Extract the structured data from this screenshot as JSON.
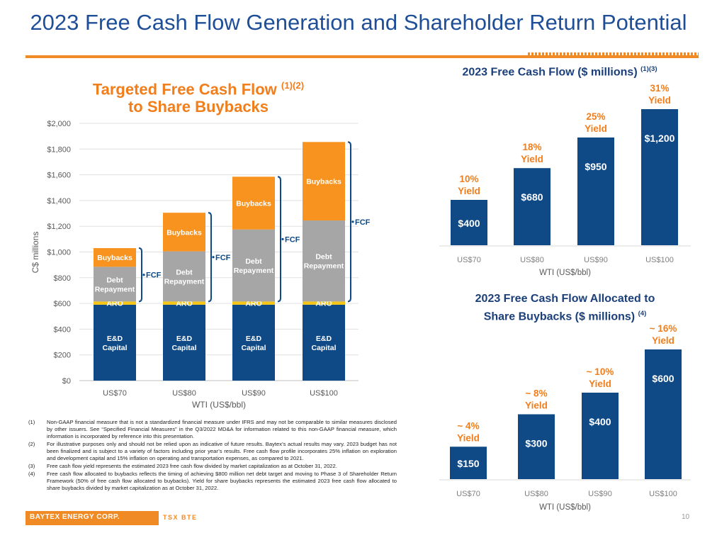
{
  "slide": {
    "title": "2023 Free Cash Flow Generation and Shareholder Return Potential",
    "page_number": "10"
  },
  "colors": {
    "navy": "#0f4a87",
    "orange": "#f7931e",
    "gray": "#a6a6a6",
    "aro": "#f5c518",
    "heading_orange": "#f07e1c",
    "heading_blue": "#1a3f7a"
  },
  "footer": {
    "company": "BAYTEX ENERGY CORP.",
    "ticker": "TSX BTE"
  },
  "footnotes": [
    {
      "num": "(1)",
      "text": "Non-GAAP financial measure that is not a standardized financial measure under IFRS and may not be comparable to similar measures disclosed by other issuers. See “Specified Financial Measures” in the Q3/2022 MD&A for information related to this non-GAAP financial measure, which information is incorporated by reference into this presentation."
    },
    {
      "num": "(2)",
      "text": "For illustrative purposes only and should not be relied upon as indicative of future results. Baytex’s actual results may vary. 2023 budget has not been finalized and is subject to a variety of factors including prior year’s results. Free cash flow profile incorporates 25% inflation on exploration and development capital and 15% inflation on operating and transportation expenses, as compared to 2021."
    },
    {
      "num": "(3)",
      "text": "Free cash flow yield represents the estimated 2023 free cash flow divided by market capitalization as at October 31, 2022."
    },
    {
      "num": "(4)",
      "text": "Free cash flow allocated to buybacks reflects the timing of achieving $800 million net debt target and moving to Phase 3 of Shareholder Return Framework (50% of free cash flow allocated to buybacks). Yield for share buybacks represents the estimated 2023 free cash flow allocated to share buybacks divided by market capitalization as at October 31, 2022."
    }
  ],
  "chart_data": [
    {
      "id": "left",
      "type": "bar",
      "stacked": true,
      "title_line1": "Targeted Free Cash Flow",
      "title_line2": "to Share Buybacks",
      "title_sup": "(1)(2)",
      "xlabel": "WTI (US$/bbl)",
      "ylabel": "C$ millions",
      "ylim": [
        0,
        2000
      ],
      "yticks": [
        0,
        200,
        400,
        600,
        800,
        1000,
        1200,
        1400,
        1600,
        1800,
        2000
      ],
      "ytick_labels": [
        "$0",
        "$200",
        "$400",
        "$600",
        "$800",
        "$1,000",
        "$1,200",
        "$1,400",
        "$1,600",
        "$1,800",
        "$2,000"
      ],
      "grid": true,
      "categories": [
        "US$70",
        "US$80",
        "US$90",
        "US$100"
      ],
      "series": [
        {
          "name": "E&D Capital",
          "label": "E&D Capital",
          "color": "#0f4a87",
          "values": [
            590,
            590,
            590,
            590
          ]
        },
        {
          "name": "ARO",
          "label": "ARO",
          "color": "#f5c518",
          "values": [
            25,
            25,
            25,
            25
          ]
        },
        {
          "name": "Debt Repayment",
          "label": "Debt Repayment",
          "color": "#a6a6a6",
          "values": [
            270,
            390,
            560,
            630
          ]
        },
        {
          "name": "Buybacks",
          "label": "Buybacks",
          "color": "#f7931e",
          "values": [
            145,
            300,
            410,
            610
          ]
        }
      ],
      "fcf_label": "FCF"
    },
    {
      "id": "right-top",
      "type": "bar",
      "title": "2023 Free Cash Flow ($ millions)",
      "title_sup": "(1)(3)",
      "xlabel": "WTI (US$/bbl)",
      "categories": [
        "US$70",
        "US$80",
        "US$90",
        "US$100"
      ],
      "values": [
        400,
        680,
        950,
        1200
      ],
      "value_labels": [
        "$400",
        "$680",
        "$950",
        "$1,200"
      ],
      "yield_pct": [
        "10%",
        "18%",
        "25%",
        "31%"
      ],
      "yield_word": "Yield",
      "ylim": [
        0,
        1200
      ]
    },
    {
      "id": "right-bottom",
      "type": "bar",
      "title_line1": "2023 Free Cash Flow Allocated to",
      "title_line2": "Share Buybacks ($ millions)",
      "title_sup": "(4)",
      "xlabel": "WTI (US$/bbl)",
      "categories": [
        "US$70",
        "US$80",
        "US$90",
        "US$100"
      ],
      "values": [
        150,
        300,
        400,
        600
      ],
      "value_labels": [
        "$150",
        "$300",
        "$400",
        "$600"
      ],
      "yield_pct": [
        "~ 4%",
        "~ 8%",
        "~ 10%",
        "~ 16%"
      ],
      "yield_word": "Yield",
      "ylim": [
        0,
        600
      ]
    }
  ]
}
